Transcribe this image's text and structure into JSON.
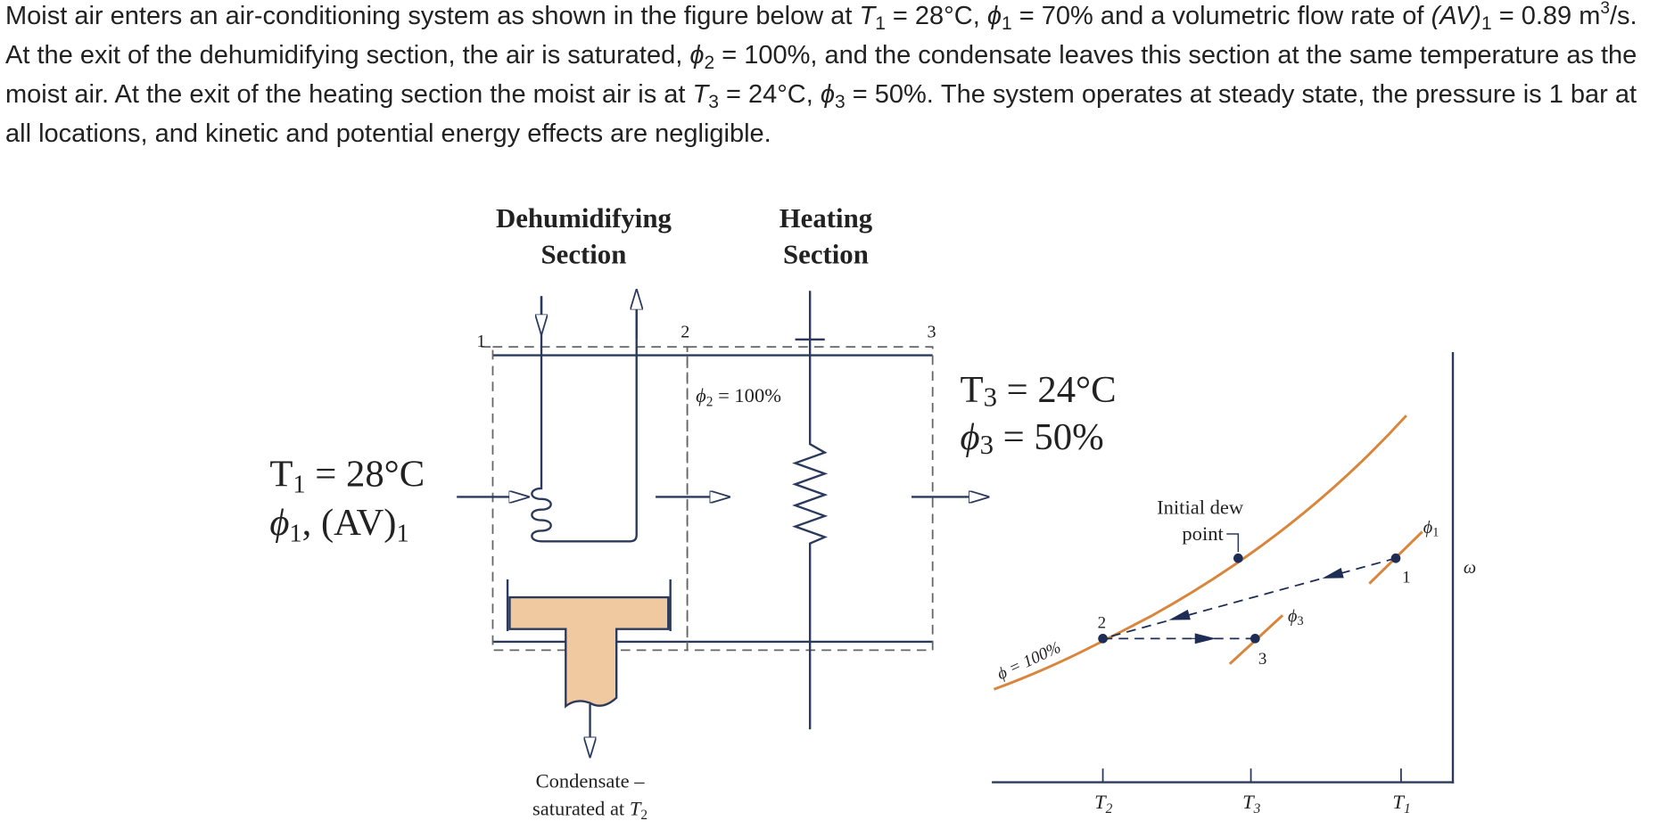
{
  "problem_text": [
    "Moist air enters an air-conditioning system as shown in the figure below at ",
    "T",
    "1",
    " = 28°C, ",
    "ϕ",
    "1",
    " = 70% and a volumetric flow rate of ",
    "(AV)",
    "1",
    " = 0.89 m",
    "3",
    "/s. At the exit of the dehumidifying section, the air is saturated, ",
    "ϕ",
    "2",
    " = 100%, and the condensate leaves this section at the same temperature as the moist air. At the exit of the heating section the moist air is at ",
    "T",
    "3",
    " = 24°C, ",
    "ϕ",
    "3",
    " = 50%. The system operates at steady state, the pressure is 1 bar at all locations, and kinetic and potential energy effects are negligible."
  ],
  "figure": {
    "section_labels": [
      [
        "Dehumidifying",
        "Section"
      ],
      [
        "Heating",
        "Section"
      ]
    ],
    "state_numbers": [
      "1",
      "2",
      "3"
    ],
    "inlet": [
      [
        "T",
        "1",
        " = 28°C"
      ],
      [
        "ϕ",
        "1",
        ", (AV)",
        "1"
      ]
    ],
    "phi2": [
      "ϕ",
      "2",
      " = 100%"
    ],
    "exit": [
      [
        "T",
        "3",
        " = 24°C"
      ],
      [
        "ϕ",
        "3",
        " = 50%"
      ]
    ],
    "condensate": [
      "Condensate –",
      "saturated at ",
      "T",
      "2"
    ],
    "chart": {
      "dew_point": [
        "Initial dew",
        "point"
      ],
      "saturation": "ϕ = 100%",
      "states": [
        "1",
        "2",
        "3"
      ],
      "phi_labels": [
        [
          "ϕ",
          "3"
        ],
        [
          "ϕ",
          "1"
        ]
      ],
      "y_axis": "ω",
      "x_ticks": [
        [
          "T",
          "2"
        ],
        [
          "T",
          "3"
        ],
        [
          "T",
          "1"
        ]
      ]
    }
  }
}
